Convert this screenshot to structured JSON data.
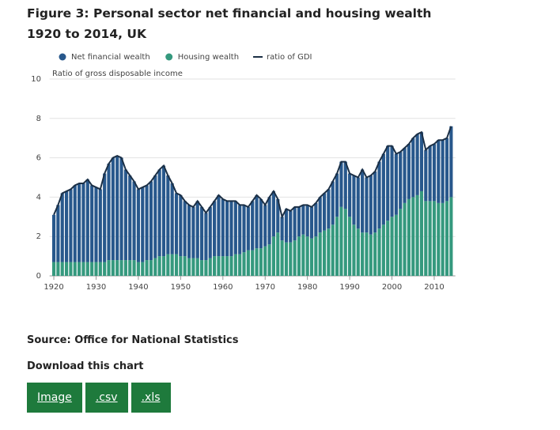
{
  "chart_data": {
    "type": "stacked-bar-line",
    "title": "Figure 3: Personal sector net financial and housing wealth 1920 to 2014, UK",
    "y_label": "Ratio of gross disposable income",
    "x": [
      1920,
      1921,
      1922,
      1923,
      1924,
      1925,
      1926,
      1927,
      1928,
      1929,
      1930,
      1931,
      1932,
      1933,
      1934,
      1935,
      1936,
      1937,
      1938,
      1939,
      1940,
      1941,
      1942,
      1943,
      1944,
      1945,
      1946,
      1947,
      1948,
      1949,
      1950,
      1951,
      1952,
      1953,
      1954,
      1955,
      1956,
      1957,
      1958,
      1959,
      1960,
      1961,
      1962,
      1963,
      1964,
      1965,
      1966,
      1967,
      1968,
      1969,
      1970,
      1971,
      1972,
      1973,
      1974,
      1975,
      1976,
      1977,
      1978,
      1979,
      1980,
      1981,
      1982,
      1983,
      1984,
      1985,
      1986,
      1987,
      1988,
      1989,
      1990,
      1991,
      1992,
      1993,
      1994,
      1995,
      1996,
      1997,
      1998,
      1999,
      2000,
      2001,
      2002,
      2003,
      2004,
      2005,
      2006,
      2007,
      2008,
      2009,
      2010,
      2011,
      2012,
      2013,
      2014
    ],
    "xlim": [
      1919,
      2015
    ],
    "xticks": [
      1920,
      1930,
      1940,
      1950,
      1960,
      1970,
      1980,
      1990,
      2000,
      2010
    ],
    "ylim": [
      0,
      10
    ],
    "yticks": [
      0,
      2,
      4,
      6,
      8,
      10
    ],
    "grid": true,
    "legend": "top",
    "series": [
      {
        "name": "Housing wealth",
        "color": "#35997e",
        "kind": "bar",
        "values": [
          0.7,
          0.7,
          0.7,
          0.7,
          0.7,
          0.7,
          0.7,
          0.7,
          0.7,
          0.7,
          0.7,
          0.7,
          0.7,
          0.8,
          0.8,
          0.8,
          0.8,
          0.8,
          0.8,
          0.8,
          0.7,
          0.7,
          0.8,
          0.8,
          0.9,
          1.0,
          1.0,
          1.1,
          1.1,
          1.1,
          1.0,
          1.0,
          0.9,
          0.9,
          0.9,
          0.8,
          0.8,
          0.9,
          1.0,
          1.0,
          1.0,
          1.0,
          1.0,
          1.1,
          1.1,
          1.2,
          1.3,
          1.3,
          1.4,
          1.4,
          1.5,
          1.6,
          2.0,
          2.2,
          1.8,
          1.7,
          1.7,
          1.8,
          2.0,
          2.1,
          2.0,
          1.9,
          2.0,
          2.2,
          2.3,
          2.4,
          2.6,
          3.0,
          3.5,
          3.4,
          3.0,
          2.6,
          2.4,
          2.2,
          2.2,
          2.1,
          2.2,
          2.4,
          2.6,
          2.8,
          3.0,
          3.1,
          3.4,
          3.7,
          3.9,
          4.0,
          4.1,
          4.3,
          3.8,
          3.8,
          3.8,
          3.7,
          3.7,
          3.8,
          4.0
        ]
      },
      {
        "name": "Net financial wealth",
        "color": "#28588c",
        "kind": "bar",
        "values": [
          2.4,
          2.9,
          3.5,
          3.6,
          3.7,
          3.9,
          4.0,
          4.0,
          4.2,
          3.9,
          3.8,
          3.7,
          4.5,
          4.9,
          5.2,
          5.3,
          5.2,
          4.6,
          4.3,
          4.0,
          3.7,
          3.8,
          3.8,
          4.0,
          4.2,
          4.4,
          4.6,
          4.0,
          3.6,
          3.1,
          3.1,
          2.8,
          2.7,
          2.6,
          2.9,
          2.7,
          2.4,
          2.6,
          2.8,
          3.1,
          2.9,
          2.8,
          2.8,
          2.7,
          2.5,
          2.4,
          2.2,
          2.5,
          2.7,
          2.5,
          2.1,
          2.4,
          2.3,
          1.7,
          1.2,
          1.7,
          1.6,
          1.7,
          1.5,
          1.5,
          1.6,
          1.6,
          1.7,
          1.8,
          1.9,
          2.0,
          2.2,
          2.2,
          2.3,
          2.4,
          2.2,
          2.5,
          2.6,
          3.2,
          2.8,
          3.0,
          3.1,
          3.4,
          3.6,
          3.8,
          3.6,
          3.1,
          2.9,
          2.8,
          2.8,
          3.0,
          3.1,
          3.0,
          2.6,
          2.8,
          2.9,
          3.2,
          3.2,
          3.2,
          3.6
        ]
      },
      {
        "name": "ratio of GDI",
        "color": "#1b2f45",
        "kind": "line",
        "values": [
          3.1,
          3.6,
          4.2,
          4.3,
          4.4,
          4.6,
          4.7,
          4.7,
          4.9,
          4.6,
          4.5,
          4.4,
          5.2,
          5.7,
          6.0,
          6.1,
          6.0,
          5.4,
          5.1,
          4.8,
          4.4,
          4.5,
          4.6,
          4.8,
          5.1,
          5.4,
          5.6,
          5.1,
          4.7,
          4.2,
          4.1,
          3.8,
          3.6,
          3.5,
          3.8,
          3.5,
          3.2,
          3.5,
          3.8,
          4.1,
          3.9,
          3.8,
          3.8,
          3.8,
          3.6,
          3.6,
          3.5,
          3.8,
          4.1,
          3.9,
          3.6,
          4.0,
          4.3,
          3.9,
          3.0,
          3.4,
          3.3,
          3.5,
          3.5,
          3.6,
          3.6,
          3.5,
          3.7,
          4.0,
          4.2,
          4.4,
          4.8,
          5.2,
          5.8,
          5.8,
          5.2,
          5.1,
          5.0,
          5.4,
          5.0,
          5.1,
          5.3,
          5.8,
          6.2,
          6.6,
          6.6,
          6.2,
          6.3,
          6.5,
          6.7,
          7.0,
          7.2,
          7.3,
          6.4,
          6.6,
          6.7,
          6.9,
          6.9,
          7.0,
          7.6
        ]
      }
    ],
    "legend_order": [
      1,
      0,
      2
    ]
  },
  "source": "Source: Office for National Statistics",
  "download": {
    "heading": "Download this chart",
    "buttons": [
      "Image",
      ".csv",
      ".xls"
    ]
  }
}
